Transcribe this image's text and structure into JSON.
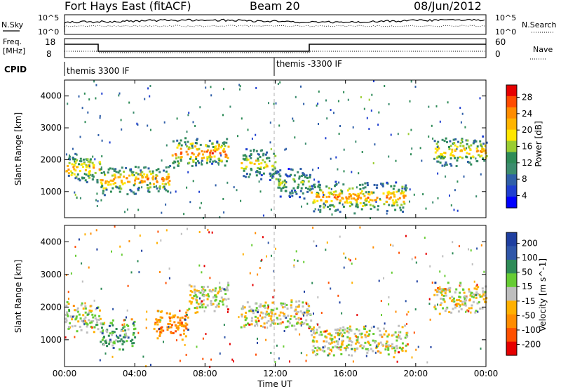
{
  "header": {
    "station": "Fort Hays East (fitACF)",
    "beam": "Beam 20",
    "date": "08/Jun/2012"
  },
  "noise_panel": {
    "left_label": "N.Sky",
    "right_label": "N.Search",
    "ticks_left": [
      "10^5",
      "10^0"
    ],
    "ticks_right": [
      "10^5",
      "10^0"
    ]
  },
  "freq_panel": {
    "left_label_1": "Freq.",
    "left_label_2": "[MHz]",
    "right_label": "Nave",
    "ticks_left": [
      "18",
      "8"
    ],
    "ticks_right": [
      "60",
      "0"
    ]
  },
  "cpid_panel": {
    "label": "CPID",
    "modes": [
      "themis 3300 IF",
      "themis -3300 IF"
    ]
  },
  "xaxis": {
    "label": "Time UT",
    "ticks": [
      "00:00",
      "04:00",
      "08:00",
      "12:00",
      "16:00",
      "20:00",
      "00:00"
    ]
  },
  "power_colorbar": {
    "label": "Power [dB]",
    "ticks": [
      "28",
      "24",
      "20",
      "16",
      "12",
      "8",
      "4"
    ],
    "colors": [
      "#e60000",
      "#ff4b00",
      "#ff8c00",
      "#ffb400",
      "#ffe600",
      "#9acd32",
      "#2e8b57",
      "#3c8c6e",
      "#2f5fa8",
      "#1f3fd0",
      "#0000ff"
    ]
  },
  "velocity_colorbar": {
    "label": "Velocity [m s^-1]",
    "ticks": [
      "200",
      "100",
      "50",
      "15",
      "-15",
      "-50",
      "-100",
      "-200"
    ],
    "colors": [
      "#1f3fa0",
      "#2f56a8",
      "#2e8b57",
      "#66cc33",
      "#bebebe",
      "#ffb000",
      "#ff8c00",
      "#ff5000",
      "#e60000"
    ]
  },
  "chart_data": [
    {
      "type": "heatmap",
      "title": "Fort Hays East (fitACF)  Beam 20  08/Jun/2012",
      "quantity": "Power [dB]",
      "xlabel": "Time UT",
      "ylabel": "Slant Range [km]",
      "xlim": [
        "00:00",
        "24:00"
      ],
      "ylim": [
        180,
        4500
      ],
      "yticks": [
        1000,
        2000,
        3000,
        4000
      ],
      "color_range": [
        0,
        30
      ],
      "echo_bands": [
        {
          "t_start": 0.0,
          "t_end": 2.0,
          "range_center_km": 1750,
          "value_db": 22
        },
        {
          "t_start": 2.0,
          "t_end": 6.0,
          "range_center_km": 1400,
          "value_db": 24
        },
        {
          "t_start": 6.0,
          "t_end": 9.3,
          "range_center_km": 2250,
          "value_db": 26
        },
        {
          "t_start": 10.0,
          "t_end": 12.0,
          "range_center_km": 1900,
          "value_db": 20
        },
        {
          "t_start": 12.0,
          "t_end": 14.0,
          "range_center_km": 1300,
          "value_db": 16
        },
        {
          "t_start": 14.0,
          "t_end": 19.5,
          "range_center_km": 850,
          "value_db": 24
        },
        {
          "t_start": 21.0,
          "t_end": 24.0,
          "range_center_km": 2300,
          "value_db": 22
        }
      ]
    },
    {
      "type": "heatmap",
      "quantity": "Velocity [m s^-1]",
      "xlabel": "Time UT",
      "ylabel": "Slant Range [km]",
      "xlim": [
        "00:00",
        "24:00"
      ],
      "ylim": [
        180,
        4500
      ],
      "yticks": [
        1000,
        2000,
        3000,
        4000
      ],
      "color_range": [
        -200,
        200
      ],
      "echo_bands": [
        {
          "t_start": 0.0,
          "t_end": 2.0,
          "range_center_km": 1750,
          "value_ms": 0
        },
        {
          "t_start": 2.0,
          "t_end": 4.0,
          "range_center_km": 1200,
          "value_ms": 60
        },
        {
          "t_start": 5.0,
          "t_end": 7.0,
          "range_center_km": 1500,
          "value_ms": -80
        },
        {
          "t_start": 7.0,
          "t_end": 9.3,
          "range_center_km": 2350,
          "value_ms": 0
        },
        {
          "t_start": 10.0,
          "t_end": 14.0,
          "range_center_km": 1800,
          "value_ms": 0
        },
        {
          "t_start": 14.0,
          "t_end": 19.5,
          "range_center_km": 1000,
          "value_ms": 0
        },
        {
          "t_start": 21.0,
          "t_end": 24.0,
          "range_center_km": 2300,
          "value_ms": 0
        }
      ]
    }
  ]
}
